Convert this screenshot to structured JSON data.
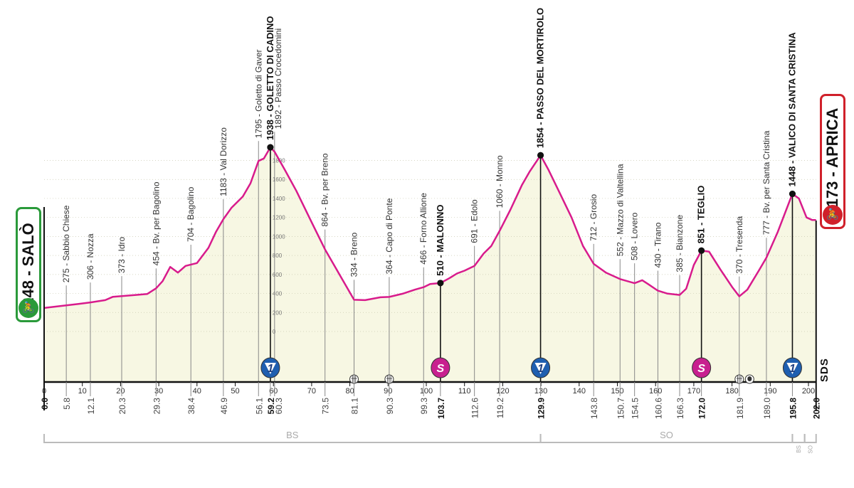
{
  "chart_data": {
    "type": "area",
    "xlabel": "",
    "ylabel": "",
    "xlim": [
      0,
      202
    ],
    "ylim": [
      0,
      1800
    ],
    "grid": true,
    "x_ticks": [
      "0",
      "10",
      "20",
      "30",
      "40",
      "50",
      "60",
      "70",
      "80",
      "90",
      "100",
      "110",
      "120",
      "130",
      "140",
      "150",
      "160",
      "170",
      "180",
      "190",
      "200"
    ],
    "y_ticks": [
      "0",
      "200",
      "400",
      "600",
      "800",
      "1000",
      "1200",
      "1400",
      "1600",
      "1800"
    ],
    "profile_color": "#d81b8c",
    "fill_color": "#f7f7e3",
    "profile": [
      [
        0,
        248
      ],
      [
        3,
        262
      ],
      [
        5.8,
        275
      ],
      [
        9,
        290
      ],
      [
        12.1,
        306
      ],
      [
        16,
        330
      ],
      [
        18,
        365
      ],
      [
        20.3,
        373
      ],
      [
        24,
        385
      ],
      [
        27,
        395
      ],
      [
        29.3,
        454
      ],
      [
        31,
        530
      ],
      [
        33,
        680
      ],
      [
        35,
        620
      ],
      [
        37,
        690
      ],
      [
        38.4,
        704
      ],
      [
        40,
        720
      ],
      [
        43,
        880
      ],
      [
        45,
        1050
      ],
      [
        46.9,
        1183
      ],
      [
        49,
        1300
      ],
      [
        52,
        1420
      ],
      [
        54,
        1560
      ],
      [
        56.1,
        1795
      ],
      [
        57.5,
        1820
      ],
      [
        59.2,
        1938
      ],
      [
        60.3,
        1892
      ],
      [
        63,
        1700
      ],
      [
        66,
        1480
      ],
      [
        70,
        1150
      ],
      [
        73.5,
        864
      ],
      [
        77,
        620
      ],
      [
        81.1,
        334
      ],
      [
        84,
        330
      ],
      [
        88,
        360
      ],
      [
        90.3,
        364
      ],
      [
        94,
        400
      ],
      [
        97,
        440
      ],
      [
        99.3,
        466
      ],
      [
        101,
        500
      ],
      [
        103.7,
        510
      ],
      [
        106,
        560
      ],
      [
        108,
        610
      ],
      [
        110,
        640
      ],
      [
        112.6,
        691
      ],
      [
        115,
        820
      ],
      [
        117,
        900
      ],
      [
        119.2,
        1060
      ],
      [
        122,
        1280
      ],
      [
        125,
        1540
      ],
      [
        127,
        1680
      ],
      [
        129.9,
        1854
      ],
      [
        132,
        1700
      ],
      [
        135,
        1450
      ],
      [
        138,
        1200
      ],
      [
        141,
        900
      ],
      [
        143.8,
        712
      ],
      [
        147,
        620
      ],
      [
        150.7,
        552
      ],
      [
        154.5,
        508
      ],
      [
        156.5,
        540
      ],
      [
        158,
        500
      ],
      [
        160.6,
        430
      ],
      [
        163,
        400
      ],
      [
        166.3,
        385
      ],
      [
        168,
        450
      ],
      [
        170,
        700
      ],
      [
        172,
        851
      ],
      [
        174,
        840
      ],
      [
        177,
        650
      ],
      [
        180,
        470
      ],
      [
        181.9,
        370
      ],
      [
        184,
        440
      ],
      [
        187,
        640
      ],
      [
        189,
        777
      ],
      [
        192,
        1050
      ],
      [
        195.8,
        1448
      ],
      [
        197.5,
        1400
      ],
      [
        199.5,
        1200
      ],
      [
        201,
        1173
      ],
      [
        202,
        1173
      ]
    ],
    "points": [
      {
        "km": "5.8",
        "elev": "275",
        "name": "275 - Sabbio Chiese",
        "bold": false
      },
      {
        "km": "12.1",
        "elev": "306",
        "name": "306 - Nozza",
        "bold": false
      },
      {
        "km": "20.3",
        "elev": "373",
        "name": "373 - Idro",
        "bold": false
      },
      {
        "km": "29.3",
        "elev": "454",
        "name": "454 - Bv. per Bagolino",
        "bold": false
      },
      {
        "km": "38.4",
        "elev": "704",
        "name": "704 - Bagolino",
        "bold": false
      },
      {
        "km": "46.9",
        "elev": "1183",
        "name": "1183 - Val Dorizzo",
        "bold": false
      },
      {
        "km": "56.1",
        "elev": "1795",
        "name": "1795 - Goletto di Gaver",
        "bold": false
      },
      {
        "km": "59.2",
        "elev": "1938",
        "name": "1938 - GOLETTO DI CADINO",
        "bold": true
      },
      {
        "km": "60.3",
        "elev": "1892",
        "name": "1892 - Passo Crocedomini",
        "bold": false
      },
      {
        "km": "73.5",
        "elev": "864",
        "name": "864 - Bv. per Breno",
        "bold": false
      },
      {
        "km": "81.1",
        "elev": "334",
        "name": "334 - Breno",
        "bold": false
      },
      {
        "km": "90.3",
        "elev": "364",
        "name": "364 - Capo di Ponte",
        "bold": false
      },
      {
        "km": "99.3",
        "elev": "466",
        "name": "466 - Forno Allione",
        "bold": false
      },
      {
        "km": "103.7",
        "elev": "510",
        "name": "510 - MALONNO",
        "bold": true
      },
      {
        "km": "112.6",
        "elev": "691",
        "name": "691 - Edolo",
        "bold": false
      },
      {
        "km": "119.2",
        "elev": "1060",
        "name": "1060 - Monno",
        "bold": false
      },
      {
        "km": "129.9",
        "elev": "1854",
        "name": "1854 - PASSO DEL MORTIROLO",
        "bold": true
      },
      {
        "km": "143.8",
        "elev": "712",
        "name": "712 - Grosio",
        "bold": false
      },
      {
        "km": "150.7",
        "elev": "552",
        "name": "552 - Mazzo di Valtellina",
        "bold": false
      },
      {
        "km": "154.5",
        "elev": "508",
        "name": "508 - Lovero",
        "bold": false
      },
      {
        "km": "160.6",
        "elev": "430",
        "name": "430 - Tirano",
        "bold": false
      },
      {
        "km": "166.3",
        "elev": "385",
        "name": "385 - Bianzone",
        "bold": false
      },
      {
        "km": "172.0",
        "elev": "851",
        "name": "851 - TEGLIO",
        "bold": true
      },
      {
        "km": "181.9",
        "elev": "370",
        "name": "370 - Tresenda",
        "bold": false
      },
      {
        "km": "189.0",
        "elev": "777",
        "name": "777 - Bv. per Santa Cristina",
        "bold": false
      },
      {
        "km": "195.8",
        "elev": "1448",
        "name": "1448 - VALICO DI SANTA CRISTINA",
        "bold": true
      }
    ],
    "km_labels": [
      {
        "km": "0.0",
        "bold": true
      },
      {
        "km": "5.8",
        "bold": false
      },
      {
        "km": "12.1",
        "bold": false
      },
      {
        "km": "20.3",
        "bold": false
      },
      {
        "km": "29.3",
        "bold": false
      },
      {
        "km": "38.4",
        "bold": false
      },
      {
        "km": "46.9",
        "bold": false
      },
      {
        "km": "56.1",
        "bold": false
      },
      {
        "km": "59.2",
        "bold": true
      },
      {
        "km": "60.3",
        "bold": false
      },
      {
        "km": "73.5",
        "bold": false
      },
      {
        "km": "81.1",
        "bold": false
      },
      {
        "km": "90.3",
        "bold": false
      },
      {
        "km": "99.3",
        "bold": false
      },
      {
        "km": "103.7",
        "bold": true
      },
      {
        "km": "112.6",
        "bold": false
      },
      {
        "km": "119.2",
        "bold": false
      },
      {
        "km": "129.9",
        "bold": true
      },
      {
        "km": "143.8",
        "bold": false
      },
      {
        "km": "150.7",
        "bold": false
      },
      {
        "km": "154.5",
        "bold": false
      },
      {
        "km": "160.6",
        "bold": false
      },
      {
        "km": "166.3",
        "bold": false
      },
      {
        "km": "172.0",
        "bold": true
      },
      {
        "km": "181.9",
        "bold": false
      },
      {
        "km": "189.0",
        "bold": false
      },
      {
        "km": "195.8",
        "bold": true
      },
      {
        "km": "202.0",
        "bold": true
      }
    ],
    "markers": [
      {
        "type": "gpm",
        "km": 59.2,
        "label": "1",
        "color": "#1f5fb0"
      },
      {
        "type": "sprint",
        "km": 103.7,
        "label": "S",
        "color": "#c8208f"
      },
      {
        "type": "gpm",
        "km": 129.9,
        "label": "1",
        "color": "#1f5fb0"
      },
      {
        "type": "sprint",
        "km": 172.0,
        "label": "S",
        "color": "#c8208f"
      },
      {
        "type": "gpm",
        "km": 195.8,
        "label": "1",
        "color": "#1f5fb0"
      },
      {
        "type": "level-crossing",
        "km": 81.1
      },
      {
        "type": "level-crossing",
        "km": 90.3
      },
      {
        "type": "level-crossing",
        "km": 181.9
      },
      {
        "type": "tunnel",
        "km": 184.6
      }
    ],
    "provinces": [
      {
        "label": "BS",
        "from": 0,
        "to": 129.9,
        "small": false
      },
      {
        "label": "SO",
        "from": 129.9,
        "to": 195.8,
        "small": false
      },
      {
        "label": "BS",
        "from": 195.8,
        "to": 199,
        "small": true
      },
      {
        "label": "SO",
        "from": 199,
        "to": 202,
        "small": true
      }
    ]
  },
  "start": {
    "label": "248 - SALÒ",
    "icon": "cyclist-icon",
    "color": "#2a9a3a"
  },
  "finish": {
    "label": "1173 - APRICA",
    "icon": "cyclist-icon",
    "color": "#d0202a"
  },
  "logo": "SDS"
}
